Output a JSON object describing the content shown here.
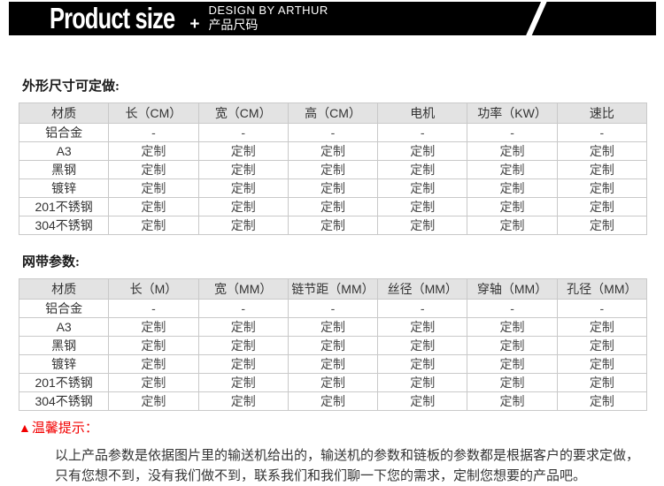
{
  "colors": {
    "accent": "#f20000",
    "header_bg": "#e3e3e3",
    "border": "#c9c9c9",
    "banner_bg": "#000000",
    "banner_fg": "#ffffff"
  },
  "banner": {
    "title": "Product size",
    "plus": "+",
    "subtitle_en": "DESIGN BY ARTHUR",
    "subtitle_cn": "产品尺码"
  },
  "table1": {
    "title": "外形尺寸可定做:",
    "columns": [
      "材质",
      "长（CM）",
      "宽（CM）",
      "高（CM）",
      "电机",
      "功率（KW）",
      "速比"
    ],
    "rows": [
      [
        "铝合金",
        "-",
        "-",
        "-",
        "-",
        "-",
        "-"
      ],
      [
        "A3",
        "定制",
        "定制",
        "定制",
        "定制",
        "定制",
        "定制"
      ],
      [
        "黑钢",
        "定制",
        "定制",
        "定制",
        "定制",
        "定制",
        "定制"
      ],
      [
        "镀锌",
        "定制",
        "定制",
        "定制",
        "定制",
        "定制",
        "定制"
      ],
      [
        "201不锈钢",
        "定制",
        "定制",
        "定制",
        "定制",
        "定制",
        "定制"
      ],
      [
        "304不锈钢",
        "定制",
        "定制",
        "定制",
        "定制",
        "定制",
        "定制"
      ]
    ]
  },
  "table2": {
    "title": "网带参数:",
    "columns": [
      "材质",
      "长（M）",
      "宽（MM）",
      "链节距（MM）",
      "丝径（MM）",
      "穿轴（MM）",
      "孔径（MM）"
    ],
    "rows": [
      [
        "铝合金",
        "-",
        "-",
        "-",
        "-",
        "-",
        "-"
      ],
      [
        "A3",
        "定制",
        "定制",
        "定制",
        "定制",
        "定制",
        "定制"
      ],
      [
        "黑钢",
        "定制",
        "定制",
        "定制",
        "定制",
        "定制",
        "定制"
      ],
      [
        "镀锌",
        "定制",
        "定制",
        "定制",
        "定制",
        "定制",
        "定制"
      ],
      [
        "201不锈钢",
        "定制",
        "定制",
        "定制",
        "定制",
        "定制",
        "定制"
      ],
      [
        "304不锈钢",
        "定制",
        "定制",
        "定制",
        "定制",
        "定制",
        "定制"
      ]
    ]
  },
  "tips": {
    "triangle": "▲",
    "label": "温馨提示：",
    "lines": [
      "以上产品参数是依据图片里的输送机给出的，输送机的参数和链板的参数都是根据客户的要求定做，",
      "只有您想不到，没有我们做不到，联系我们和我们聊一下您的需求，定制您想要的产品吧。"
    ]
  }
}
